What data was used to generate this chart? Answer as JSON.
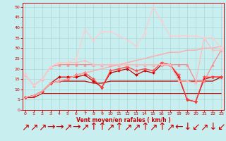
{
  "x": [
    0,
    1,
    2,
    3,
    4,
    5,
    6,
    7,
    8,
    9,
    10,
    11,
    12,
    13,
    14,
    15,
    16,
    17,
    18,
    19,
    20,
    21,
    22,
    23
  ],
  "series": [
    {
      "name": "darkred_flat_bottom",
      "color": "#cc0000",
      "lw": 0.8,
      "marker": null,
      "values": [
        6,
        6,
        8,
        8,
        8,
        8,
        8,
        8,
        8,
        8,
        8,
        8,
        8,
        8,
        8,
        8,
        8,
        8,
        8,
        8,
        8,
        8,
        8,
        8
      ]
    },
    {
      "name": "darkred_rising_nodot",
      "color": "#bb0000",
      "lw": 0.9,
      "marker": null,
      "values": [
        6,
        7,
        9,
        13,
        14,
        14,
        14,
        14,
        13,
        13,
        14,
        14,
        14,
        14,
        14,
        14,
        14,
        14,
        14,
        14,
        14,
        14,
        14,
        16
      ]
    },
    {
      "name": "darkred_diamond",
      "color": "#cc0000",
      "lw": 0.9,
      "marker": "D",
      "markersize": 2,
      "values": [
        6,
        7,
        9,
        13,
        16,
        16,
        16,
        17,
        14,
        11,
        18,
        19,
        20,
        17,
        19,
        18,
        22,
        22,
        16,
        5,
        4,
        15,
        16,
        16
      ]
    },
    {
      "name": "pink_star",
      "color": "#ff4444",
      "lw": 0.9,
      "marker": "*",
      "markersize": 3.5,
      "values": [
        6,
        7,
        9,
        13,
        14,
        15,
        17,
        18,
        15,
        11,
        19,
        20,
        21,
        19,
        20,
        19,
        23,
        22,
        17,
        5,
        4,
        16,
        16,
        16
      ]
    },
    {
      "name": "lightpink_diagonal",
      "color": "#ffaaaa",
      "lw": 1.0,
      "marker": null,
      "values": [
        6,
        7,
        9,
        13,
        14,
        15,
        17,
        18,
        19,
        20,
        21,
        22,
        23,
        24,
        25,
        26,
        27,
        28,
        28,
        29,
        29,
        30,
        30,
        31
      ]
    },
    {
      "name": "pink_triangle",
      "color": "#ff8888",
      "lw": 0.9,
      "marker": "^",
      "markersize": 2.5,
      "values": [
        17,
        12,
        15,
        21,
        22,
        22,
        22,
        22,
        22,
        22,
        22,
        22,
        22,
        22,
        22,
        22,
        22,
        22,
        22,
        22,
        14,
        14,
        22,
        29
      ]
    },
    {
      "name": "lightpink_circle",
      "color": "#ffbbbb",
      "lw": 0.9,
      "marker": "o",
      "markersize": 2,
      "values": [
        17,
        12,
        15,
        21,
        23,
        23,
        23,
        24,
        22,
        22,
        22,
        22,
        22,
        22,
        22,
        22,
        22,
        22,
        14,
        14,
        13,
        35,
        29,
        29
      ]
    },
    {
      "name": "verylightpink_gust",
      "color": "#ffcccc",
      "lw": 0.9,
      "marker": "o",
      "markersize": 2,
      "values": [
        17,
        12,
        15,
        21,
        23,
        23,
        25,
        39,
        34,
        38,
        38,
        36,
        34,
        31,
        37,
        50,
        43,
        36,
        36,
        36,
        36,
        35,
        35,
        30
      ]
    }
  ],
  "xlim": [
    -0.3,
    23.3
  ],
  "ylim": [
    0,
    52
  ],
  "yticks": [
    0,
    5,
    10,
    15,
    20,
    25,
    30,
    35,
    40,
    45,
    50
  ],
  "xticks": [
    0,
    1,
    2,
    3,
    4,
    5,
    6,
    7,
    8,
    9,
    10,
    11,
    12,
    13,
    14,
    15,
    16,
    17,
    18,
    19,
    20,
    21,
    22,
    23
  ],
  "xlabel": "Vent moyen/en rafales ( km/h )",
  "bg_color": "#c8eef0",
  "grid_color": "#aad8da",
  "axis_color": "#cc0000",
  "tick_color": "#cc0000",
  "xlabel_color": "#cc0000",
  "arrow_chars": [
    "↗",
    "↗",
    "↗",
    "→",
    "→",
    "↗",
    "→",
    "↗",
    "↑",
    "↑",
    "↗",
    "↑",
    "↗",
    "↗",
    "↑",
    "↗",
    "↑",
    "↗",
    "←",
    "↓",
    "↙",
    "↗",
    "↓",
    "↙"
  ]
}
